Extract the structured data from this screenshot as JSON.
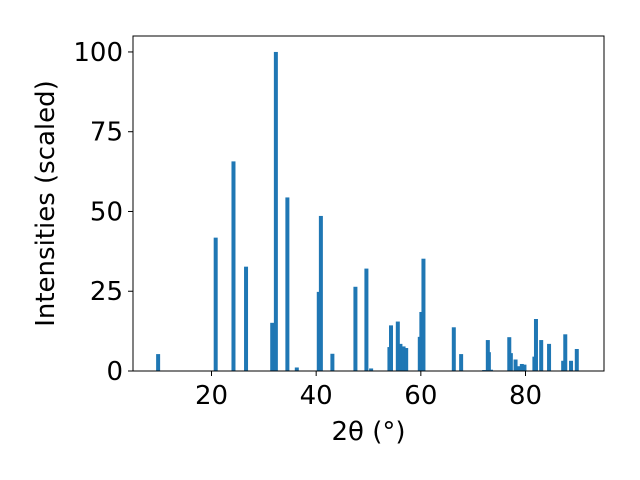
{
  "chart_data": {
    "type": "bar",
    "xlabel": "2θ (°)",
    "ylabel": "Intensities (scaled)",
    "xlim": [
      5,
      95
    ],
    "ylim": [
      0,
      105
    ],
    "xticks": [
      20,
      40,
      60,
      80
    ],
    "yticks": [
      0,
      25,
      50,
      75,
      100
    ],
    "grid": false,
    "bar_color": "#1f77b4",
    "x": [
      9.8,
      20.8,
      24.2,
      26.6,
      31.6,
      32.3,
      34.5,
      36.3,
      40.5,
      40.9,
      43.1,
      47.5,
      49.6,
      50.5,
      54.0,
      54.3,
      55.6,
      56.1,
      56.7,
      57.2,
      59.8,
      60.1,
      60.5,
      66.3,
      67.7,
      72.1,
      72.8,
      73.0,
      73.4,
      76.9,
      77.2,
      78.1,
      78.8,
      79.3,
      79.8,
      81.7,
      82.0,
      83.0,
      84.5,
      87.2,
      87.6,
      88.7,
      89.8
    ],
    "values": [
      5.3,
      41.8,
      65.7,
      32.7,
      15.1,
      100.0,
      54.4,
      1.1,
      24.8,
      48.6,
      5.4,
      26.4,
      32.1,
      0.8,
      7.5,
      14.3,
      15.5,
      8.5,
      7.7,
      7.2,
      10.7,
      18.5,
      35.2,
      13.7,
      5.3,
      0.3,
      9.7,
      5.9,
      0.4,
      10.6,
      5.6,
      3.6,
      1.5,
      2.2,
      2.0,
      4.5,
      16.3,
      9.7,
      8.5,
      3.2,
      11.5,
      3.2,
      6.9
    ]
  }
}
